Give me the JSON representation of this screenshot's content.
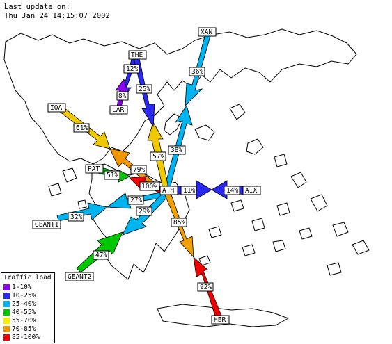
{
  "header": {
    "line1": "Last update on:",
    "line2": "Thu Jan 24 14:15:07 2002"
  },
  "nodes": {
    "xan": "XAN",
    "the": "THE",
    "lar": "LAR",
    "ioa": "IOA",
    "pat": "PAT",
    "ath": "ATH",
    "aix": "AIX",
    "geant1": "GEANT1",
    "geant2": "GEANT2",
    "her": "HER"
  },
  "links": [
    {
      "id": "ath-xan",
      "load": "38%",
      "color": "#00b4f0"
    },
    {
      "id": "xan-ath",
      "load": "36%",
      "color": "#00b4f0"
    },
    {
      "id": "the-lar",
      "load": "12%",
      "color": "#2828f0"
    },
    {
      "id": "lar-the",
      "load": "8%",
      "color": "#8c00f0"
    },
    {
      "id": "ath-the",
      "load": "57%",
      "color": "#f0c800"
    },
    {
      "id": "the-ath",
      "load": "25%",
      "color": "#2828f0"
    },
    {
      "id": "ioa-ath",
      "load": "61%",
      "color": "#f0c800"
    },
    {
      "id": "ath-ioa",
      "load": "79%",
      "color": "#f09600"
    },
    {
      "id": "pat-ath",
      "load": "51%",
      "color": "#00c800"
    },
    {
      "id": "ath-pat",
      "load": "100%",
      "color": "#f00000"
    },
    {
      "id": "ath-aix",
      "load": "11%",
      "color": "#2828f0"
    },
    {
      "id": "aix-ath",
      "load": "14%",
      "color": "#2828f0"
    },
    {
      "id": "ath-geant1",
      "load": "27%",
      "color": "#00b4f0"
    },
    {
      "id": "geant1-ath",
      "load": "32%",
      "color": "#00b4f0"
    },
    {
      "id": "ath-geant2",
      "load": "29%",
      "color": "#00b4f0"
    },
    {
      "id": "geant2-ath",
      "load": "47%",
      "color": "#00c800"
    },
    {
      "id": "ath-her",
      "load": "85%",
      "color": "#f0a000"
    },
    {
      "id": "her-ath",
      "load": "92%",
      "color": "#f00000"
    }
  ],
  "legend": {
    "title": "Traffic load",
    "items": [
      {
        "label": "1-10%",
        "color": "#8c00f0"
      },
      {
        "label": "10-25%",
        "color": "#2828f0"
      },
      {
        "label": "25-40%",
        "color": "#00b4f0"
      },
      {
        "label": "40-55%",
        "color": "#00c800"
      },
      {
        "label": "55-70%",
        "color": "#f0f000"
      },
      {
        "label": "70-85%",
        "color": "#f09600"
      },
      {
        "label": "85-100%",
        "color": "#f00000"
      }
    ]
  }
}
